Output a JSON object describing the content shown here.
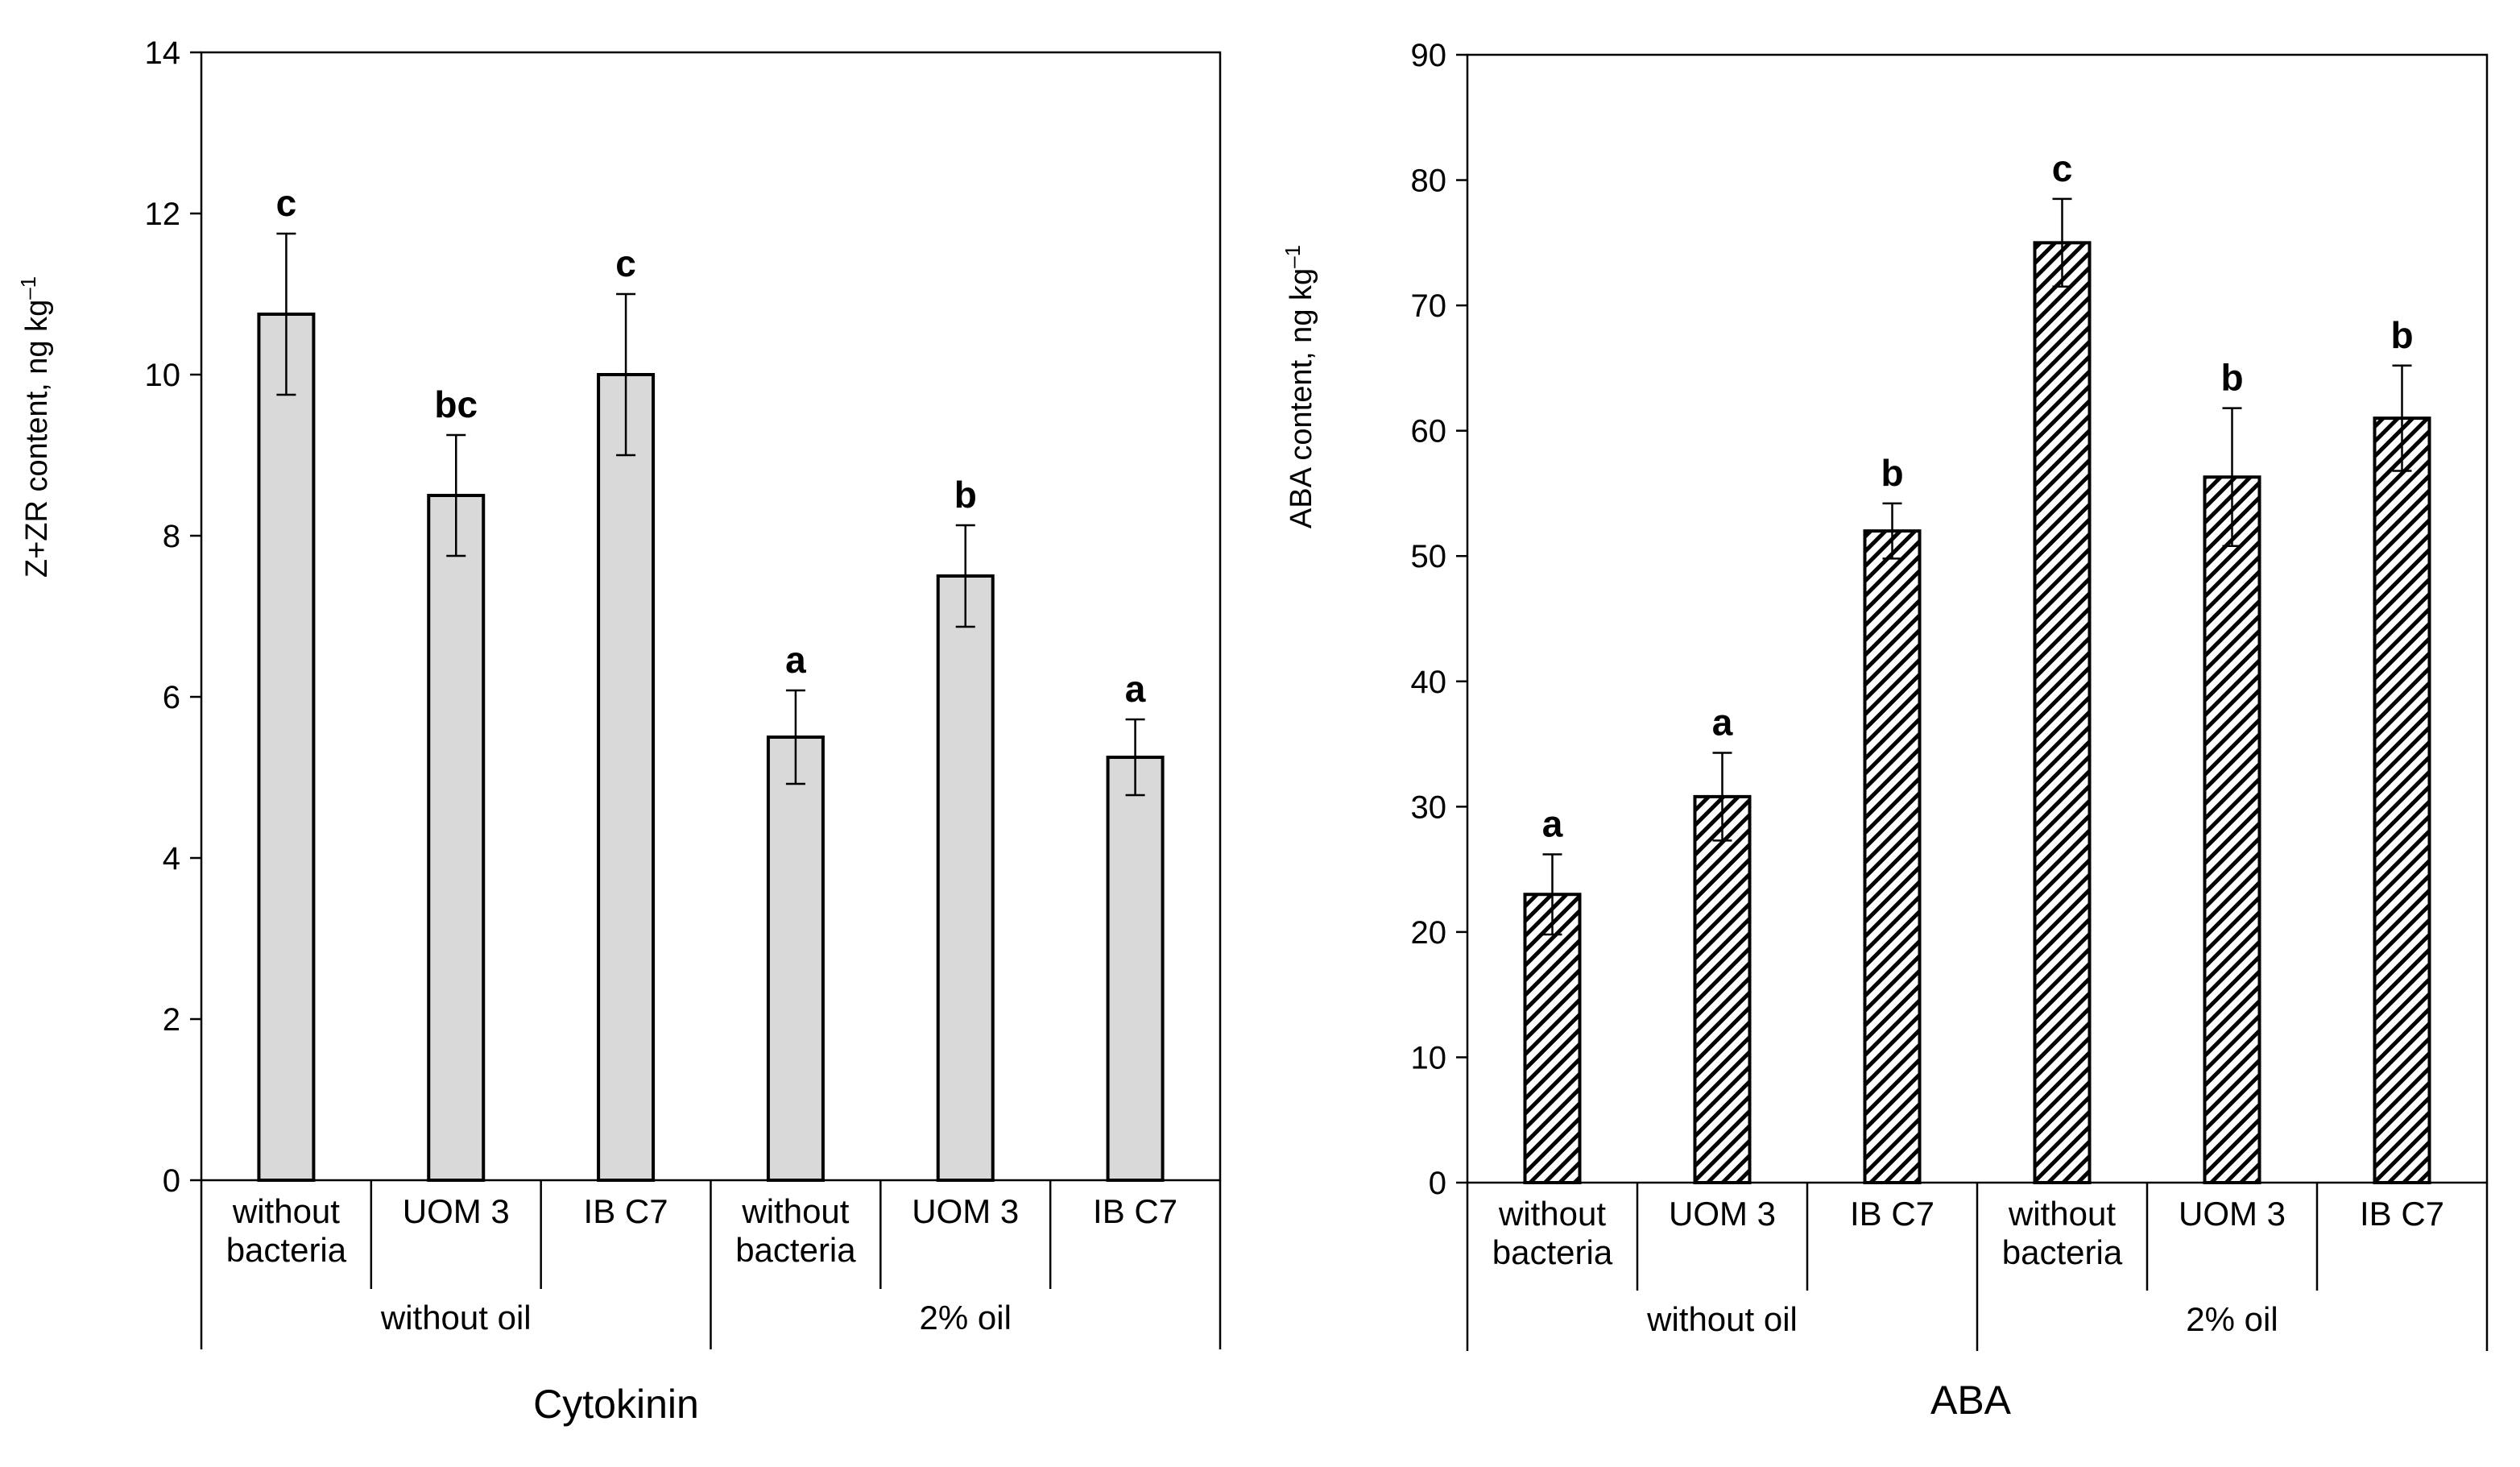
{
  "chart_data": [
    {
      "type": "bar",
      "title": "Cytokinin",
      "ylabel": "Z+ZR content, ng kg",
      "ylabel_sup": "–1",
      "ylim": [
        0,
        14
      ],
      "yticks": [
        0,
        2,
        4,
        6,
        8,
        10,
        12,
        14
      ],
      "categories": [
        [
          "without",
          "bacteria"
        ],
        [
          "UOM 3"
        ],
        [
          "IB C7"
        ],
        [
          "without",
          "bacteria"
        ],
        [
          "UOM 3"
        ],
        [
          "IB C7"
        ]
      ],
      "groups": [
        {
          "label": "without oil",
          "span": [
            0,
            2
          ]
        },
        {
          "label": "2% oil",
          "span": [
            3,
            5
          ]
        }
      ],
      "values": [
        10.75,
        8.5,
        10.0,
        5.5,
        7.5,
        5.25
      ],
      "errors": [
        1.0,
        0.75,
        1.0,
        0.58,
        0.63,
        0.47
      ],
      "significance": [
        "c",
        "bc",
        "c",
        "a",
        "b",
        "a"
      ],
      "fill": "#d9d9d9",
      "pattern": "solid"
    },
    {
      "type": "bar",
      "title": "ABA",
      "ylabel": "ABA content, ng kg",
      "ylabel_sup": "–1",
      "ylim": [
        0,
        90
      ],
      "yticks": [
        0,
        10,
        20,
        30,
        40,
        50,
        60,
        70,
        80,
        90
      ],
      "categories": [
        [
          "without",
          "bacteria"
        ],
        [
          "UOM 3"
        ],
        [
          "IB C7"
        ],
        [
          "without",
          "bacteria"
        ],
        [
          "UOM 3"
        ],
        [
          "IB C7"
        ]
      ],
      "groups": [
        {
          "label": "without oil",
          "span": [
            0,
            2
          ]
        },
        {
          "label": "2% oil",
          "span": [
            3,
            5
          ]
        }
      ],
      "values": [
        23.0,
        30.8,
        52.0,
        75.0,
        56.3,
        61.0
      ],
      "errors": [
        3.2,
        3.5,
        2.2,
        3.5,
        5.5,
        4.2
      ],
      "significance": [
        "a",
        "a",
        "b",
        "c",
        "b",
        "b"
      ],
      "fill": "#ffffff",
      "pattern": "diagonal-hatch"
    }
  ]
}
